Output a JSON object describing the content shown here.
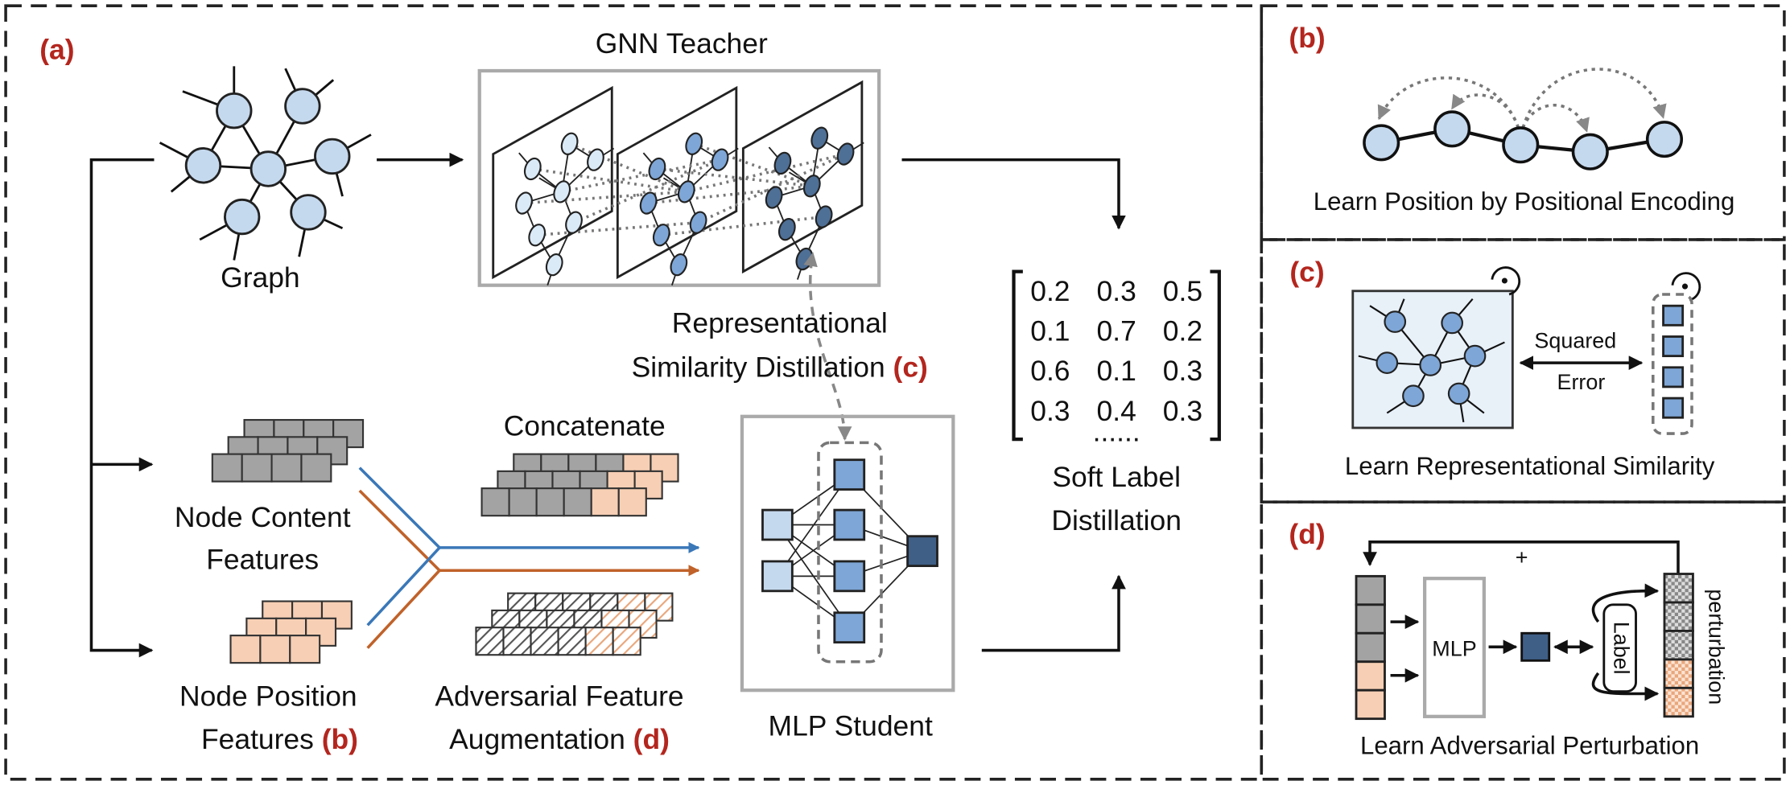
{
  "panel_a": {
    "label": "(a)",
    "teacher_title": "GNN Teacher",
    "graph_label": "Graph",
    "rsd_line1": "Representational",
    "rsd_line2": "Similarity Distillation",
    "rsd_ref": "(c)",
    "concat_label": "Concatenate",
    "content_line1": "Node Content",
    "content_line2": "Features",
    "position_line1": "Node Position",
    "position_line2": "Features",
    "position_ref": "(b)",
    "adv_line1": "Adversarial Feature",
    "adv_line2": "Augmentation",
    "adv_ref": "(d)",
    "student_label": "MLP Student",
    "matrix": {
      "rows": [
        [
          0.2,
          0.3,
          0.5
        ],
        [
          0.1,
          0.7,
          0.2
        ],
        [
          0.6,
          0.1,
          0.3
        ],
        [
          0.3,
          0.4,
          0.3
        ]
      ],
      "ellipsis": "......"
    },
    "soft_line1": "Soft Label",
    "soft_line2": "Distillation"
  },
  "panel_b": {
    "label": "(b)",
    "caption": "Learn Position by Positional Encoding"
  },
  "panel_c": {
    "label": "(c)",
    "loss_line1": "Squared",
    "loss_line2": "Error",
    "caption": "Learn Representational Similarity"
  },
  "panel_d": {
    "label": "(d)",
    "plus": "+",
    "mlp": "MLP",
    "target": "Label",
    "perturbation": "perturbation",
    "caption": "Learn Adversarial Perturbation"
  }
}
